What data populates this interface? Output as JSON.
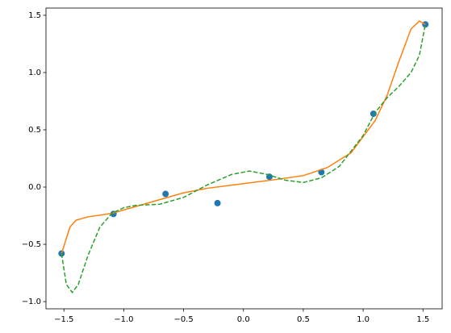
{
  "chart_data": {
    "type": "line",
    "xlim": [
      -1.65,
      1.66
    ],
    "ylim": [
      -1.063,
      1.563
    ],
    "xticks": [
      {
        "value": -1.5,
        "label": "−1.5"
      },
      {
        "value": -1.0,
        "label": "−1.0"
      },
      {
        "value": -0.5,
        "label": "−0.5"
      },
      {
        "value": 0,
        "label": "0.0"
      },
      {
        "value": 0.5,
        "label": "0.5"
      },
      {
        "value": 1.0,
        "label": "1.0"
      },
      {
        "value": 1.5,
        "label": "1.5"
      }
    ],
    "yticks": [
      {
        "value": -1.0,
        "label": "−1.0"
      },
      {
        "value": -0.5,
        "label": "−0.5"
      },
      {
        "value": 0,
        "label": "0.0"
      },
      {
        "value": 0.5,
        "label": "0.5"
      },
      {
        "value": 1.0,
        "label": "1.0"
      },
      {
        "value": 1.5,
        "label": "1.5"
      }
    ],
    "series": [
      {
        "type": "scatter",
        "color": "#1f77b4",
        "x": [
          -1.52,
          -1.086,
          -0.651,
          -0.217,
          0.217,
          0.651,
          1.086,
          1.52
        ],
        "values": [
          -0.58,
          -0.235,
          -0.06,
          -0.14,
          0.09,
          0.13,
          0.64,
          1.42
        ]
      },
      {
        "type": "line",
        "color": "#ff7f0e",
        "linestyle": "solid",
        "x": [
          -1.52,
          -1.45,
          -1.4,
          -1.3,
          -1.1,
          -0.9,
          -0.7,
          -0.5,
          -0.3,
          0,
          0.3,
          0.5,
          0.7,
          0.9,
          1.1,
          1.2,
          1.3,
          1.4,
          1.47,
          1.52
        ],
        "values": [
          -0.58,
          -0.35,
          -0.29,
          -0.26,
          -0.23,
          -0.17,
          -0.11,
          -0.05,
          -0.01,
          0.03,
          0.07,
          0.1,
          0.17,
          0.3,
          0.58,
          0.8,
          1.1,
          1.38,
          1.45,
          1.42
        ]
      },
      {
        "type": "line",
        "color": "#2ca02c",
        "linestyle": "dashed",
        "x": [
          -1.52,
          -1.48,
          -1.43,
          -1.38,
          -1.3,
          -1.2,
          -1.1,
          -1.0,
          -0.9,
          -0.7,
          -0.5,
          -0.3,
          -0.1,
          0.05,
          0.2,
          0.35,
          0.5,
          0.65,
          0.8,
          1.0,
          1.1,
          1.2,
          1.3,
          1.4,
          1.47,
          1.52
        ],
        "values": [
          -0.58,
          -0.85,
          -0.92,
          -0.85,
          -0.6,
          -0.35,
          -0.23,
          -0.18,
          -0.16,
          -0.15,
          -0.09,
          0.02,
          0.11,
          0.14,
          0.11,
          0.06,
          0.04,
          0.08,
          0.18,
          0.45,
          0.65,
          0.78,
          0.88,
          1.0,
          1.15,
          1.42
        ]
      }
    ]
  }
}
